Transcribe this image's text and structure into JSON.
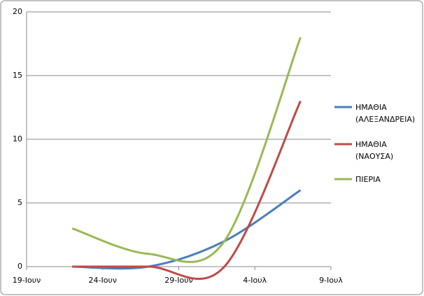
{
  "chart_data": {
    "type": "line",
    "x": [
      "22-Ιουν",
      "27-Ιουν",
      "2-Ιουλ",
      "7-Ιουλ"
    ],
    "series": [
      {
        "name": "ΗΜΑΘΙΑ (ΑΛΕΞΑΝΔΡΕΙΑ)",
        "color": "#4a7ebb",
        "values": [
          0,
          0,
          2,
          6
        ]
      },
      {
        "name": "ΗΜΑΘΙΑ (ΝΑΟΥΣΑ)",
        "color": "#be4b48",
        "values": [
          0,
          0,
          0,
          13
        ]
      },
      {
        "name": "ΠΙΕΡΙΑ",
        "color": "#98b954",
        "values": [
          3,
          1,
          2,
          18
        ]
      }
    ],
    "xticks": [
      "19-Ιουν",
      "24-Ιουν",
      "29-Ιουν",
      "4-Ιουλ",
      "9-Ιουλ"
    ],
    "ylim": [
      0,
      20
    ],
    "yticks": [
      0,
      5,
      10,
      15,
      20
    ],
    "grid": true,
    "smooth": true,
    "legend": "right"
  }
}
